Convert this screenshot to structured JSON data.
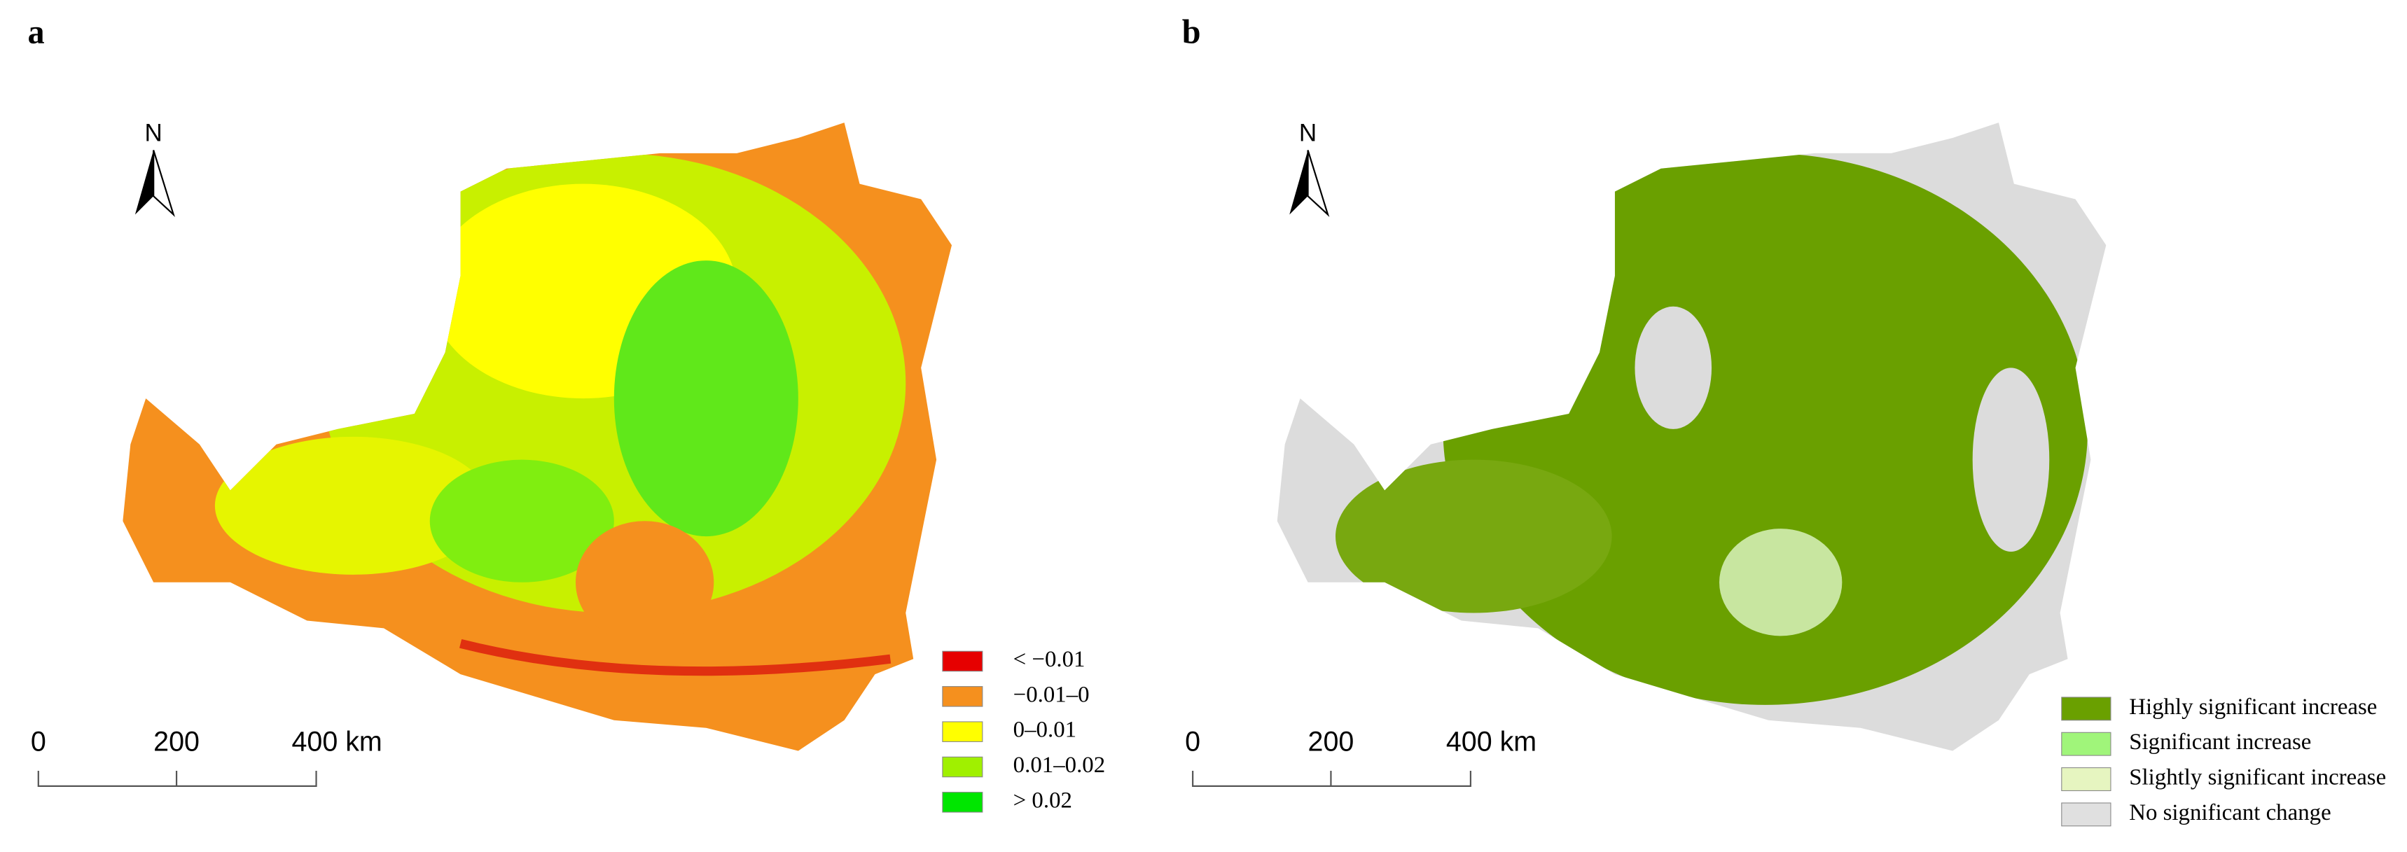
{
  "panels": [
    {
      "label": "a",
      "north": "N",
      "scale_bar": [
        "0",
        "200",
        "400 km"
      ],
      "legend": [
        {
          "label": "< −0.01",
          "color": "#e60000"
        },
        {
          "label": "−0.01–0",
          "color": "#f5901e"
        },
        {
          "label": "0–0.01",
          "color": "#ffff00"
        },
        {
          "label": "0.01–0.02",
          "color": "#a0f000"
        },
        {
          "label": "> 0.02",
          "color": "#00e600"
        }
      ]
    },
    {
      "label": "b",
      "north": "N",
      "scale_bar": [
        "0",
        "200",
        "400 km"
      ],
      "legend": [
        {
          "label": "Highly significant increase",
          "color": "#6aa000"
        },
        {
          "label": "Significant increase",
          "color": "#a0f57a"
        },
        {
          "label": "Slightly significant increase",
          "color": "#e6f5c0"
        },
        {
          "label": "No significant change",
          "color": "#e0e0e0"
        }
      ]
    }
  ]
}
